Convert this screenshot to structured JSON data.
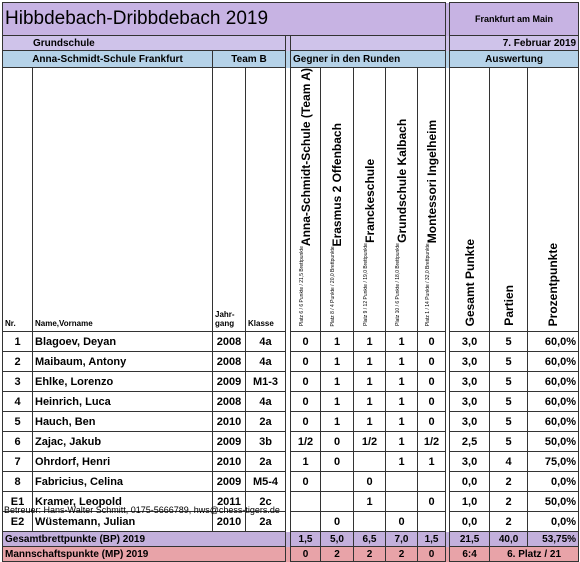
{
  "header": {
    "title": "Hibbdebach-Dribbdebach 2019",
    "location": "Frankfurt am Main",
    "school_type": "Grundschule",
    "date": "7. Februar 2019",
    "school": "Anna-Schmidt-Schule Frankfurt",
    "team": "Team B",
    "opponents_label": "Gegner in den Runden",
    "evaluation_label": "Auswertung"
  },
  "columns": {
    "nr": "Nr.",
    "name": "Name,Vorname",
    "birth_year": "Jahr-\ngang",
    "class": "Klasse",
    "opponents": [
      {
        "name": "Anna-Schmidt-Schule (Team A)",
        "info": "Platz 6 / 6 Punkte / 21,5 Brettpunkte"
      },
      {
        "name": "Erasmus 2 Offenbach",
        "info": "Platz 8 / 4 Punkte / 20,0 Brettpunkte"
      },
      {
        "name": "Franckeschule",
        "info": "Platz 9 / 12 Punkte / 19,0 Brettpunkte"
      },
      {
        "name": "Grundschule Kalbach",
        "info": "Platz 10 / 6 Punkte / 18,0 Brettpunkte"
      },
      {
        "name": "Montessori Ingelheim",
        "info": "Platz 1 / 14 Punkte / 32,0 Brettpunkte"
      }
    ],
    "total_points": "Gesamt Punkte",
    "games": "Partien",
    "percent": "Prozentpunkte"
  },
  "rows": [
    [
      "1",
      "Blagoev, Deyan",
      "2008",
      "4a",
      "0",
      "1",
      "1",
      "1",
      "0",
      "3,0",
      "5",
      "60,0%"
    ],
    [
      "2",
      "Maibaum, Antony",
      "2008",
      "4a",
      "0",
      "1",
      "1",
      "1",
      "0",
      "3,0",
      "5",
      "60,0%"
    ],
    [
      "3",
      "Ehlke, Lorenzo",
      "2009",
      "M1-3",
      "0",
      "1",
      "1",
      "1",
      "0",
      "3,0",
      "5",
      "60,0%"
    ],
    [
      "4",
      "Heinrich, Luca",
      "2008",
      "4a",
      "0",
      "1",
      "1",
      "1",
      "0",
      "3,0",
      "5",
      "60,0%"
    ],
    [
      "5",
      "Hauch, Ben",
      "2010",
      "2a",
      "0",
      "1",
      "1",
      "1",
      "0",
      "3,0",
      "5",
      "60,0%"
    ],
    [
      "6",
      "Zajac, Jakub",
      "2009",
      "3b",
      "1/2",
      "0",
      "1/2",
      "1",
      "1/2",
      "2,5",
      "5",
      "50,0%"
    ],
    [
      "7",
      "Ohrdorf, Henri",
      "2010",
      "2a",
      "1",
      "0",
      null,
      "1",
      "1",
      "3,0",
      "4",
      "75,0%"
    ],
    [
      "8",
      "Fabricius, Celina",
      "2009",
      "M5-4",
      "0",
      null,
      "0",
      null,
      null,
      "0,0",
      "2",
      "0,0%"
    ],
    [
      "E1",
      "Kramer, Leopold",
      "2011",
      "2c",
      null,
      null,
      "1",
      null,
      "0",
      "1,0",
      "2",
      "50,0%"
    ],
    [
      "E2",
      "Wüstemann, Julian",
      "2010",
      "2a",
      null,
      "0",
      null,
      "0",
      null,
      "0,0",
      "2",
      "0,0%"
    ]
  ],
  "totals": {
    "board_points": {
      "label": "Gesamtbrettpunkte (BP) 2019",
      "values": [
        "1,5",
        "5,0",
        "6,5",
        "7,0",
        "1,5",
        "21,5",
        "40,0",
        "53,75%"
      ]
    },
    "team_points": {
      "label": "Mannschaftspunkte (MP) 2019",
      "values": [
        "0",
        "2",
        "2",
        "2",
        "0",
        "6:4",
        "6. Platz / 21"
      ]
    }
  },
  "footer": "Betreuer: Hans-Walter Schmitt, 0175-5666789, hws@chess-tigers.de"
}
